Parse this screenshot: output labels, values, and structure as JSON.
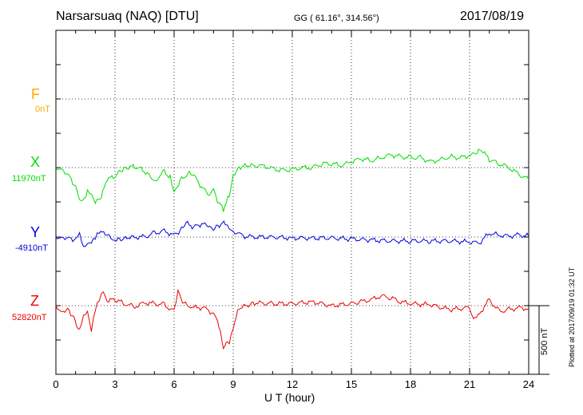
{
  "header": {
    "station": "Narsarsuaq (NAQ)  [DTU]",
    "coords": "GG ( 61.16°, 314.56°)",
    "date": "2017/08/19"
  },
  "plotted_note": "Plotted at 2017/09/19 01:32 UT",
  "scale_bar_label": "500 nT",
  "chart_data": {
    "type": "line",
    "xlabel": "U T (hour)",
    "x_ticks": [
      "0",
      "3",
      "6",
      "9",
      "12",
      "15",
      "18",
      "21",
      "24"
    ],
    "xlim": [
      0,
      24
    ],
    "grid": true,
    "channels": [
      {
        "letter": "F",
        "baseline": "0nT",
        "color": "#FFA500"
      },
      {
        "letter": "X",
        "baseline": "11970nT",
        "color": "#00DD00"
      },
      {
        "letter": "Y",
        "baseline": "-4910nT",
        "color": "#0000DD"
      },
      {
        "letter": "Z",
        "baseline": "52820nT",
        "color": "#EE0000"
      }
    ],
    "units": "nT (offset from baseline)",
    "series": [
      {
        "name": "X",
        "x": [
          0,
          0.3,
          0.7,
          1.0,
          1.3,
          1.6,
          1.8,
          2.0,
          2.3,
          2.6,
          3.0,
          3.3,
          3.6,
          4.0,
          4.4,
          4.8,
          5.0,
          5.5,
          5.8,
          6.0,
          6.3,
          6.7,
          7.0,
          7.4,
          7.8,
          8.0,
          8.2,
          8.5,
          8.8,
          9.0,
          9.3,
          9.6,
          10.0,
          10.5,
          11.0,
          11.5,
          12.0,
          12.5,
          13.0,
          13.5,
          14.0,
          14.5,
          15.0,
          15.5,
          16.0,
          16.5,
          17.0,
          17.5,
          18.0,
          18.5,
          19.0,
          19.5,
          20.0,
          20.5,
          21.0,
          21.3,
          21.6,
          22.0,
          22.5,
          23.0,
          23.5,
          24.0
        ],
        "values": [
          0,
          -10,
          -90,
          -200,
          -360,
          -250,
          -280,
          -360,
          -300,
          -120,
          -90,
          -30,
          0,
          10,
          -20,
          -90,
          -140,
          -40,
          -100,
          -260,
          -130,
          -60,
          -80,
          -200,
          -280,
          -200,
          -330,
          -420,
          -280,
          -70,
          0,
          30,
          20,
          20,
          -10,
          -30,
          -20,
          0,
          0,
          40,
          40,
          20,
          60,
          90,
          70,
          100,
          130,
          110,
          100,
          100,
          60,
          80,
          110,
          100,
          120,
          140,
          180,
          80,
          40,
          0,
          -70,
          -120
        ]
      },
      {
        "name": "Y",
        "x": [
          0,
          0.3,
          0.7,
          1.0,
          1.2,
          1.4,
          1.6,
          1.8,
          2.0,
          2.2,
          2.5,
          2.8,
          3.0,
          3.3,
          3.6,
          4.0,
          4.5,
          5.0,
          5.5,
          6.0,
          6.3,
          6.6,
          7.0,
          7.4,
          7.8,
          8.0,
          8.3,
          8.6,
          8.8,
          9.0,
          9.5,
          10,
          11,
          12,
          13,
          14,
          15,
          16,
          17,
          18,
          19,
          20,
          21,
          21.5,
          22,
          22.5,
          23,
          23.5,
          24
        ],
        "values": [
          0,
          0,
          -10,
          -30,
          20,
          -120,
          -80,
          -60,
          -10,
          50,
          30,
          -10,
          -20,
          -20,
          0,
          0,
          0,
          40,
          60,
          20,
          60,
          140,
          100,
          130,
          110,
          80,
          120,
          150,
          100,
          60,
          10,
          0,
          0,
          -10,
          -10,
          -10,
          -20,
          -30,
          -40,
          -40,
          -40,
          -40,
          -50,
          -60,
          40,
          20,
          10,
          20,
          10
        ]
      },
      {
        "name": "Z",
        "x": [
          0,
          0.3,
          0.6,
          0.9,
          1.2,
          1.4,
          1.6,
          1.8,
          2.0,
          2.2,
          2.4,
          2.6,
          3.0,
          3.5,
          4.0,
          4.5,
          5.0,
          5.5,
          6.0,
          6.2,
          6.5,
          7.0,
          7.5,
          8.0,
          8.2,
          8.5,
          8.8,
          9.0,
          9.3,
          9.7,
          10,
          11,
          12,
          13,
          14,
          15,
          15.5,
          16,
          16.5,
          17,
          17.5,
          18,
          19,
          20,
          21,
          21.2,
          21.5,
          22,
          22.5,
          23,
          23.5,
          24
        ],
        "values": [
          0,
          -60,
          -30,
          -120,
          -260,
          -120,
          -70,
          -260,
          -40,
          60,
          150,
          50,
          60,
          20,
          -10,
          30,
          20,
          10,
          -60,
          140,
          20,
          -20,
          -20,
          -80,
          -150,
          -420,
          -360,
          -210,
          -20,
          0,
          30,
          20,
          20,
          40,
          0,
          20,
          40,
          60,
          100,
          80,
          40,
          20,
          10,
          -40,
          -20,
          -120,
          -80,
          60,
          -60,
          -40,
          -20,
          -30
        ]
      }
    ]
  }
}
